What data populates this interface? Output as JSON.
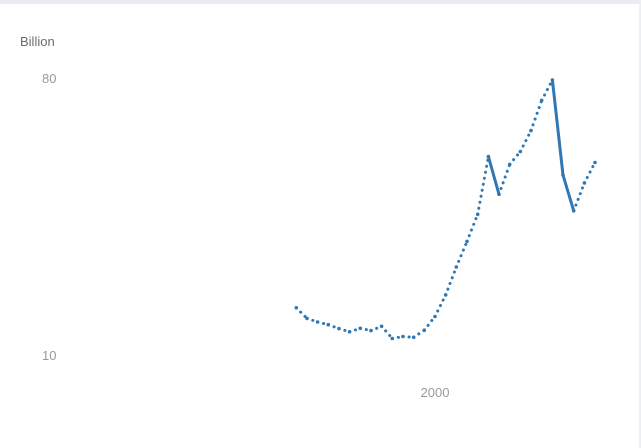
{
  "chart_data": {
    "type": "line",
    "ylabel": "Billion",
    "ylim": [
      10,
      80
    ],
    "yticks": [
      "80",
      "10"
    ],
    "xticks": [
      "2000"
    ],
    "xlim": [
      1985,
      2017
    ],
    "style": "mixed: dotted where data sparse, solid where dense",
    "color": "#2f78b4",
    "series": [
      {
        "points": [
          {
            "x": 1987.0,
            "y": 21.5,
            "solid": false
          },
          {
            "x": 1988.0,
            "y": 18.8,
            "solid": false
          },
          {
            "x": 1989.0,
            "y": 17.9,
            "solid": false
          },
          {
            "x": 1990.0,
            "y": 17.2,
            "solid": false
          },
          {
            "x": 1991.0,
            "y": 16.2,
            "solid": false
          },
          {
            "x": 1992.0,
            "y": 15.4,
            "solid": false
          },
          {
            "x": 1993.0,
            "y": 16.3,
            "solid": false
          },
          {
            "x": 1994.0,
            "y": 15.7,
            "solid": false
          },
          {
            "x": 1995.0,
            "y": 16.8,
            "solid": false
          },
          {
            "x": 1996.0,
            "y": 13.7,
            "solid": false
          },
          {
            "x": 1997.0,
            "y": 14.2,
            "solid": false
          },
          {
            "x": 1998.0,
            "y": 14.0,
            "solid": false
          },
          {
            "x": 1999.0,
            "y": 15.8,
            "solid": false
          },
          {
            "x": 2000.0,
            "y": 19.3,
            "solid": false
          },
          {
            "x": 2001.0,
            "y": 24.8,
            "solid": false
          },
          {
            "x": 2002.0,
            "y": 31.9,
            "solid": false
          },
          {
            "x": 2003.0,
            "y": 38.4,
            "solid": false
          },
          {
            "x": 2004.0,
            "y": 45.3,
            "solid": false
          },
          {
            "x": 2005.0,
            "y": 60.0,
            "solid": true
          },
          {
            "x": 2006.0,
            "y": 50.4,
            "solid": true
          },
          {
            "x": 2007.0,
            "y": 58.0,
            "solid": false
          },
          {
            "x": 2008.0,
            "y": 61.3,
            "solid": false
          },
          {
            "x": 2009.0,
            "y": 66.6,
            "solid": false
          },
          {
            "x": 2010.0,
            "y": 74.3,
            "solid": false
          },
          {
            "x": 2011.0,
            "y": 79.5,
            "solid": true
          },
          {
            "x": 2012.0,
            "y": 55.3,
            "solid": true
          },
          {
            "x": 2013.0,
            "y": 46.2,
            "solid": true
          },
          {
            "x": 2014.0,
            "y": 53.3,
            "solid": false
          },
          {
            "x": 2015.0,
            "y": 58.5,
            "solid": false
          }
        ]
      }
    ]
  }
}
